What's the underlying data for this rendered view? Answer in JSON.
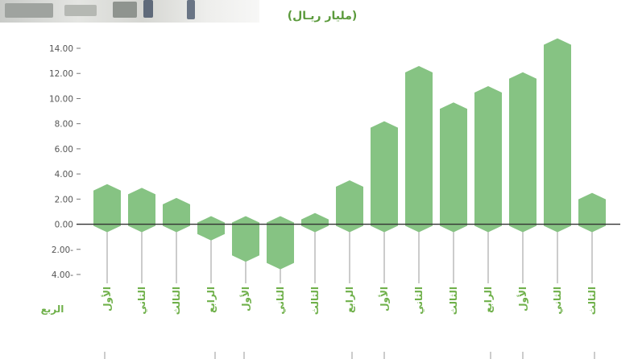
{
  "header": {
    "unit_label": "(مليار ريـال)"
  },
  "chart_data": {
    "type": "bar",
    "title": "",
    "ylabel": "(مليار ريـال)",
    "xlabel": "الربع",
    "ylim": [
      -4,
      14
    ],
    "yticks": [
      -4,
      -2,
      0,
      2,
      4,
      6,
      8,
      10,
      12,
      14
    ],
    "ytick_labels": [
      "4.00-",
      "2.00-",
      "0.00",
      "2.00",
      "4.00",
      "6.00",
      "8.00",
      "10.00",
      "12.00",
      "14.00"
    ],
    "categories": [
      "الأول",
      "الثاني",
      "الثالث",
      "الرابع",
      "الأول",
      "الثاني",
      "الثالث",
      "الرابع",
      "الأول",
      "الثاني",
      "الثالث",
      "الرابع",
      "الأول",
      "الثاني",
      "الثالث"
    ],
    "values": [
      3.0,
      2.7,
      1.9,
      -1.1,
      -2.8,
      -3.4,
      0.7,
      3.3,
      8.0,
      12.4,
      9.5,
      10.8,
      11.9,
      14.6,
      2.3
    ],
    "bar_color": "#86c383",
    "grid": false,
    "legend": "none"
  }
}
